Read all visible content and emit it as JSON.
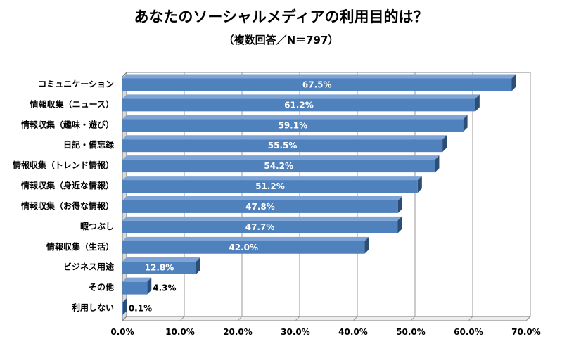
{
  "chart_data": {
    "type": "bar",
    "orientation": "horizontal",
    "title": "あなたのソーシャルメディアの利用目的は？",
    "subtitle": "（複数回答／N＝797）",
    "categories": [
      "コミュニケーション",
      "情報収集（ニュース）",
      "情報収集（趣味・遊び）",
      "日記・備忘録",
      "情報収集（トレンド情報）",
      "情報収集（身近な情報）",
      "情報収集（お得な情報）",
      "暇つぶし",
      "情報収集（生活）",
      "ビジネス用途",
      "その他",
      "利用しない"
    ],
    "values": [
      67.5,
      61.2,
      59.1,
      55.5,
      54.2,
      51.2,
      47.8,
      47.7,
      42.0,
      12.8,
      4.3,
      0.1
    ],
    "value_labels": [
      "67.5%",
      "61.2%",
      "59.1%",
      "55.5%",
      "54.2%",
      "51.2%",
      "47.8%",
      "47.7%",
      "42.0%",
      "12.8%",
      "4.3%",
      "0.1%"
    ],
    "xlim": [
      0,
      70
    ],
    "xticks": [
      "0.0%",
      "10.0%",
      "20.0%",
      "30.0%",
      "40.0%",
      "50.0%",
      "60.0%",
      "70.0%"
    ],
    "grid": true,
    "bar_color": "#4f81bd",
    "bar_side_color": "#2c4d75"
  }
}
